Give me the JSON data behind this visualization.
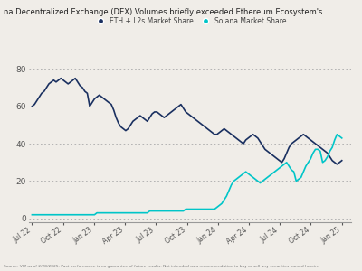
{
  "title": "na Decentralized Exchange (DEX) Volumes briefly exceeded Ethereum Ecosystem's",
  "legend_eth": "ETH + L2s Market Share",
  "legend_sol": "Solana Market Share",
  "background_color": "#f0ede8",
  "eth_color": "#1a3060",
  "sol_color": "#00c5c8",
  "ylim": [
    -2,
    85
  ],
  "yticks": [
    0,
    20,
    40,
    60,
    80
  ],
  "footnote": "Source: VIZ as of 2/28/2025. Past performance is no guarantee of future results. Not intended as a recommendation to buy or sell any securities named herein.",
  "xtick_labels": [
    "Jul 22",
    "Oct 22",
    "Jan 23",
    "Apr 23",
    "Jul 23",
    "Oct 23",
    "Jan 24",
    "Apr 24",
    "Jul 24",
    "Oct 24",
    "Jan 25"
  ],
  "eth_data": [
    60,
    61,
    63,
    65,
    67,
    68,
    70,
    72,
    73,
    74,
    73,
    74,
    75,
    74,
    73,
    72,
    73,
    74,
    75,
    73,
    71,
    70,
    68,
    67,
    60,
    62,
    64,
    65,
    66,
    65,
    64,
    63,
    62,
    61,
    58,
    54,
    51,
    49,
    48,
    47,
    48,
    50,
    52,
    53,
    54,
    55,
    54,
    53,
    52,
    54,
    56,
    57,
    57,
    56,
    55,
    54,
    55,
    56,
    57,
    58,
    59,
    60,
    61,
    59,
    57,
    56,
    55,
    54,
    53,
    52,
    51,
    50,
    49,
    48,
    47,
    46,
    45,
    45,
    46,
    47,
    48,
    47,
    46,
    45,
    44,
    43,
    42,
    41,
    40,
    42,
    43,
    44,
    45,
    44,
    43,
    41,
    39,
    37,
    36,
    35,
    34,
    33,
    32,
    31,
    30,
    32,
    35,
    38,
    40,
    41,
    42,
    43,
    44,
    45,
    44,
    43,
    42,
    41,
    40,
    39,
    38,
    37,
    36,
    35,
    33,
    31,
    30,
    29,
    30,
    31
  ],
  "sol_data": [
    2,
    2,
    2,
    2,
    2,
    2,
    2,
    2,
    2,
    2,
    2,
    2,
    2,
    2,
    2,
    2,
    2,
    2,
    2,
    2,
    2,
    2,
    2,
    2,
    2,
    2,
    2,
    3,
    3,
    3,
    3,
    3,
    3,
    3,
    3,
    3,
    3,
    3,
    3,
    3,
    3,
    3,
    3,
    3,
    3,
    3,
    3,
    3,
    3,
    4,
    4,
    4,
    4,
    4,
    4,
    4,
    4,
    4,
    4,
    4,
    4,
    4,
    4,
    4,
    5,
    5,
    5,
    5,
    5,
    5,
    5,
    5,
    5,
    5,
    5,
    5,
    5,
    6,
    7,
    8,
    10,
    12,
    15,
    18,
    20,
    21,
    22,
    23,
    24,
    25,
    24,
    23,
    22,
    21,
    20,
    19,
    20,
    21,
    22,
    23,
    24,
    25,
    26,
    27,
    28,
    29,
    30,
    28,
    26,
    25,
    20,
    21,
    22,
    25,
    28,
    30,
    32,
    35,
    37,
    37,
    36,
    30,
    31,
    33,
    36,
    38,
    42,
    45,
    44,
    43
  ]
}
